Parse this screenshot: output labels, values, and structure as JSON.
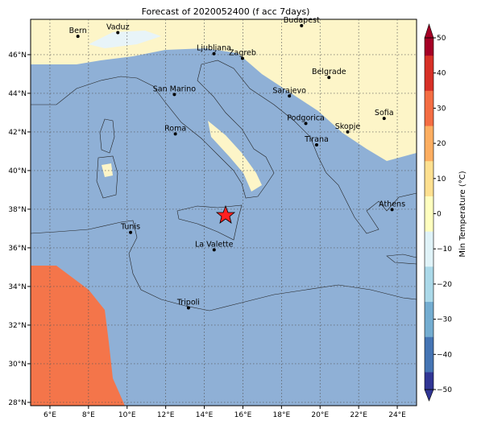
{
  "title": "Forecast of 2020052400 (f acc 7days)",
  "map": {
    "xlim": [
      5,
      25
    ],
    "ylim": [
      27.83,
      47.83
    ],
    "xticks": [
      {
        "value": 6,
        "label": "6°E"
      },
      {
        "value": 8,
        "label": "8°E"
      },
      {
        "value": 10,
        "label": "10°E"
      },
      {
        "value": 12,
        "label": "12°E"
      },
      {
        "value": 14,
        "label": "14°E"
      },
      {
        "value": 16,
        "label": "16°E"
      },
      {
        "value": 18,
        "label": "18°E"
      },
      {
        "value": 20,
        "label": "20°E"
      },
      {
        "value": 22,
        "label": "22°E"
      },
      {
        "value": 24,
        "label": "24°E"
      }
    ],
    "yticks": [
      {
        "value": 28,
        "label": "28°N"
      },
      {
        "value": 30,
        "label": "30°N"
      },
      {
        "value": 32,
        "label": "32°N"
      },
      {
        "value": 34,
        "label": "34°N"
      },
      {
        "value": 36,
        "label": "36°N"
      },
      {
        "value": 38,
        "label": "38°N"
      },
      {
        "value": 40,
        "label": "40°N"
      },
      {
        "value": 42,
        "label": "42°N"
      },
      {
        "value": 44,
        "label": "44°N"
      },
      {
        "value": 46,
        "label": "46°N"
      }
    ],
    "cities": [
      {
        "name": "Bern",
        "lon": 7.45,
        "lat": 46.95
      },
      {
        "name": "Vaduz",
        "lon": 9.52,
        "lat": 47.14
      },
      {
        "name": "Budapest",
        "lon": 19.04,
        "lat": 47.5
      },
      {
        "name": "Ljubljana",
        "lon": 14.5,
        "lat": 46.05
      },
      {
        "name": "Zagreb",
        "lon": 15.98,
        "lat": 45.81
      },
      {
        "name": "Belgrade",
        "lon": 20.46,
        "lat": 44.82
      },
      {
        "name": "Sarajevo",
        "lon": 18.41,
        "lat": 43.86
      },
      {
        "name": "San Marino",
        "lon": 12.45,
        "lat": 43.94
      },
      {
        "name": "Sofia",
        "lon": 23.32,
        "lat": 42.7
      },
      {
        "name": "Podgorica",
        "lon": 19.26,
        "lat": 42.44
      },
      {
        "name": "Skopje",
        "lon": 21.43,
        "lat": 42.0
      },
      {
        "name": "Roma",
        "lon": 12.5,
        "lat": 41.9
      },
      {
        "name": "Tirana",
        "lon": 19.82,
        "lat": 41.33
      },
      {
        "name": "Athens",
        "lon": 23.73,
        "lat": 37.98
      },
      {
        "name": "Tunis",
        "lon": 10.18,
        "lat": 36.8
      },
      {
        "name": "La Valette",
        "lon": 14.51,
        "lat": 35.9
      },
      {
        "name": "Tripoli",
        "lon": 13.18,
        "lat": 32.89
      }
    ]
  },
  "colorbar": {
    "label": "Min Temperature (°C)",
    "lim": [
      -50,
      50
    ],
    "ticks": [
      50,
      40,
      30,
      20,
      10,
      0,
      {
        "value": -10,
        "label": "−10"
      },
      {
        "value": -20,
        "label": "−20"
      },
      {
        "value": -30,
        "label": "−30"
      },
      {
        "value": -40,
        "label": "−40"
      },
      {
        "value": -50,
        "label": "−50"
      }
    ]
  }
}
